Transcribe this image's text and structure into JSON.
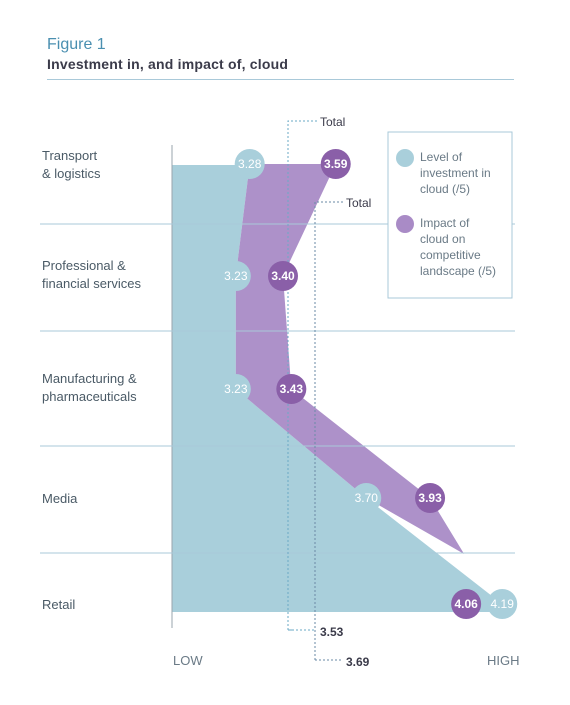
{
  "figure": {
    "label": "Figure 1",
    "title": "Investment in, and impact of, cloud"
  },
  "chart_data": {
    "type": "area",
    "orientation": "horizontal",
    "categories": [
      "Transport\n& logistics",
      "Professional &\nfinancial services",
      "Manufacturing &\npharmaceuticals",
      "Media",
      "Retail"
    ],
    "series": [
      {
        "name": "Level of\ninvestment in\ncloud (/5)",
        "values": [
          3.28,
          3.23,
          3.23,
          3.7,
          4.19
        ],
        "color": "#a9cfdb",
        "label_color": "#ffffff"
      },
      {
        "name": "Impact of\ncloud on\ncompetitive\nlandscape (/5)",
        "values": [
          3.59,
          3.4,
          3.43,
          3.93,
          4.06
        ],
        "color": "#a98bc6",
        "bubble_color": "#8a5fa8",
        "label_color": "#ffffff"
      }
    ],
    "totals": [
      {
        "label": "Total",
        "value": 3.53,
        "value_label": "3.53",
        "series": 0
      },
      {
        "label": "Total",
        "value": 3.69,
        "value_label": "3.69",
        "series": 1
      }
    ],
    "xlim": [
      3.0,
      4.2
    ],
    "x_axis_words": [
      "LOW",
      "HIGH"
    ],
    "legend_position": "top-right",
    "grid": true
  }
}
